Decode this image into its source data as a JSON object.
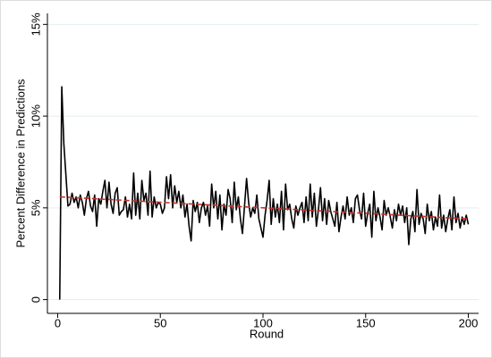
{
  "chart_data": {
    "type": "line",
    "xlabel": "Round",
    "ylabel": "Percent Difference in Predictions",
    "x": [
      1,
      2,
      3,
      4,
      5,
      6,
      7,
      8,
      9,
      10,
      11,
      12,
      13,
      14,
      15,
      16,
      17,
      18,
      19,
      20,
      21,
      22,
      23,
      24,
      25,
      26,
      27,
      28,
      29,
      30,
      31,
      32,
      33,
      34,
      35,
      36,
      37,
      38,
      39,
      40,
      41,
      42,
      43,
      44,
      45,
      46,
      47,
      48,
      49,
      50,
      51,
      52,
      53,
      54,
      55,
      56,
      57,
      58,
      59,
      60,
      61,
      62,
      63,
      64,
      65,
      66,
      67,
      68,
      69,
      70,
      71,
      72,
      73,
      74,
      75,
      76,
      77,
      78,
      79,
      80,
      81,
      82,
      83,
      84,
      85,
      86,
      87,
      88,
      89,
      90,
      91,
      92,
      93,
      94,
      95,
      96,
      97,
      98,
      99,
      100,
      101,
      102,
      103,
      104,
      105,
      106,
      107,
      108,
      109,
      110,
      111,
      112,
      113,
      114,
      115,
      116,
      117,
      118,
      119,
      120,
      121,
      122,
      123,
      124,
      125,
      126,
      127,
      128,
      129,
      130,
      131,
      132,
      133,
      134,
      135,
      136,
      137,
      138,
      139,
      140,
      141,
      142,
      143,
      144,
      145,
      146,
      147,
      148,
      149,
      150,
      151,
      152,
      153,
      154,
      155,
      156,
      157,
      158,
      159,
      160,
      161,
      162,
      163,
      164,
      165,
      166,
      167,
      168,
      169,
      170,
      171,
      172,
      173,
      174,
      175,
      176,
      177,
      178,
      179,
      180,
      181,
      182,
      183,
      184,
      185,
      186,
      187,
      188,
      189,
      190,
      191,
      192,
      193,
      194,
      195,
      196,
      197,
      198,
      199,
      200
    ],
    "series": [
      {
        "color": "#000000",
        "values": [
          0,
          11.6,
          8.5,
          6.8,
          5.1,
          5.2,
          5.8,
          5.3,
          5.6,
          5.0,
          5.7,
          5.3,
          4.6,
          5.5,
          5.9,
          5.1,
          4.8,
          5.7,
          4.0,
          5.5,
          5.2,
          5.9,
          6.5,
          5.0,
          6.4,
          5.2,
          4.7,
          5.8,
          6.1,
          4.6,
          4.8,
          4.9,
          5.6,
          4.5,
          5.2,
          4.4,
          6.9,
          4.6,
          5.8,
          4.4,
          6.5,
          5.4,
          5.8,
          4.6,
          7.0,
          4.5,
          5.6,
          5.0,
          5.3,
          5.2,
          4.7,
          5.0,
          6.7,
          5.5,
          6.8,
          5.0,
          6.2,
          5.3,
          5.9,
          5.0,
          5.7,
          4.5,
          5.2,
          4.0,
          3.2,
          5.4,
          4.8,
          5.3,
          4.2,
          5.0,
          5.3,
          4.6,
          5.1,
          4.0,
          6.3,
          5.0,
          5.9,
          4.4,
          5.7,
          3.8,
          5.2,
          4.6,
          6.0,
          5.5,
          4.2,
          6.4,
          4.9,
          5.6,
          4.4,
          3.6,
          5.1,
          6.6,
          5.3,
          4.5,
          5.0,
          4.7,
          5.7,
          4.4,
          3.9,
          3.4,
          4.6,
          5.4,
          6.5,
          4.1,
          5.5,
          4.5,
          5.2,
          4.2,
          5.9,
          3.8,
          6.3,
          4.9,
          5.2,
          4.4,
          3.9,
          5.1,
          4.6,
          5.0,
          5.3,
          4.2,
          5.6,
          4.3,
          6.3,
          4.5,
          5.8,
          4.0,
          4.9,
          6.1,
          4.3,
          5.5,
          4.1,
          5.4,
          4.8,
          4.4,
          4.0,
          5.3,
          3.7,
          4.5,
          5.1,
          4.4,
          5.6,
          4.6,
          5.0,
          4.2,
          5.5,
          5.7,
          4.9,
          4.4,
          5.8,
          4.0,
          4.7,
          5.2,
          3.4,
          5.9,
          4.3,
          5.0,
          4.5,
          3.8,
          5.4,
          4.6,
          5.0,
          4.5,
          3.9,
          4.9,
          4.3,
          5.2,
          4.6,
          5.1,
          4.2,
          5.0,
          3.0,
          4.4,
          4.8,
          3.7,
          6.0,
          4.1,
          4.7,
          4.4,
          3.6,
          5.2,
          4.3,
          4.8,
          3.8,
          4.5,
          4.0,
          5.7,
          3.9,
          4.6,
          3.7,
          4.4,
          4.9,
          3.8,
          5.6,
          4.2,
          4.7,
          3.9,
          4.5,
          4.1,
          4.6,
          4.1
        ]
      }
    ],
    "trend": {
      "x": [
        1,
        200
      ],
      "values": [
        5.6,
        4.4
      ],
      "color": "#c8302a"
    },
    "xlim": [
      -5,
      205
    ],
    "xticks": [
      0,
      50,
      100,
      150,
      200
    ],
    "ylim": [
      -0.75,
      15.6
    ],
    "yticks": [
      0,
      {
        "value": 5,
        "label": "5%"
      },
      {
        "value": 10,
        "label": "10%"
      },
      {
        "value": 15,
        "label": "15%"
      }
    ],
    "grid": true
  }
}
